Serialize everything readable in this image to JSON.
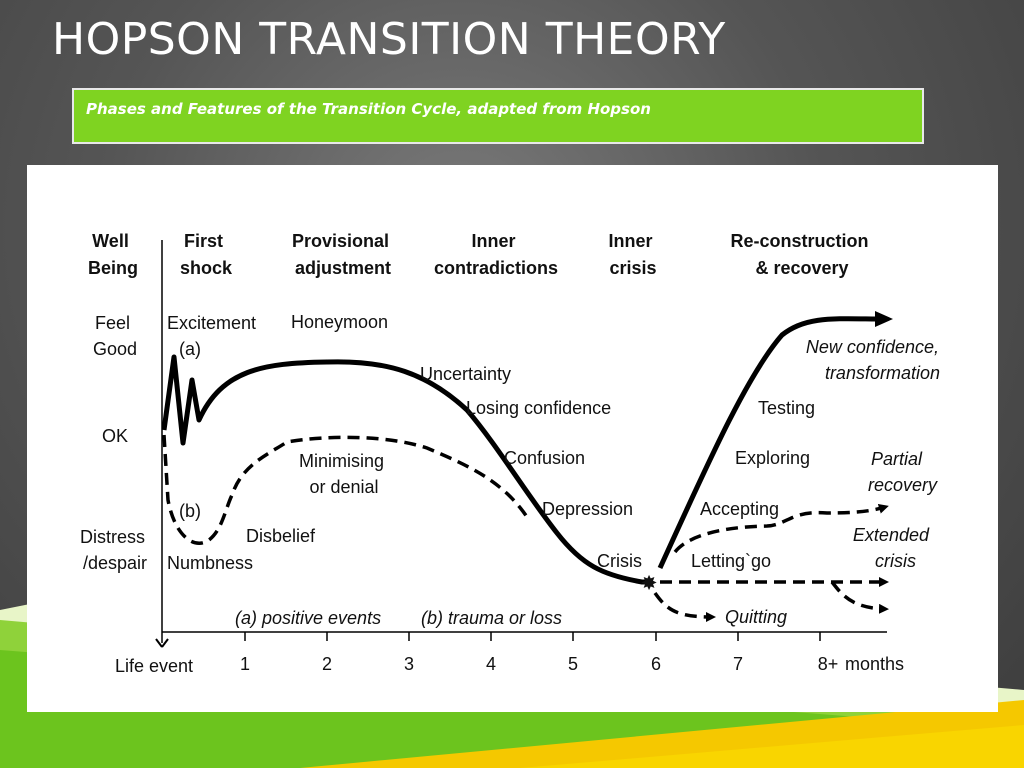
{
  "slide": {
    "title": "HOPSON TRANSITION THEORY",
    "caption": "Phases and Features of the Transition Cycle, adapted from Hopson",
    "accent_color": "#7fd321",
    "background_color": "#4a4a4a"
  },
  "diagram": {
    "headers": {
      "well_being": [
        "Well",
        "Being"
      ],
      "first_shock": [
        "First",
        "shock"
      ],
      "provisional": [
        "Provisional",
        "adjustment"
      ],
      "inner_contradictions": [
        "Inner",
        "contradictions"
      ],
      "inner_crisis": [
        "Inner",
        "crisis"
      ],
      "reconstruction": [
        "Re-construction",
        "& recovery"
      ]
    },
    "levels": {
      "feel_good": [
        "Feel",
        "Good"
      ],
      "ok": "OK",
      "distress": [
        "Distress",
        "/despair"
      ]
    },
    "labels": {
      "excitement": "Excitement",
      "a_marker": "(a)",
      "b_marker": "(b)",
      "honeymoon": "Honeymoon",
      "uncertainty": "Uncertainty",
      "losing_confidence": "Losing confidence",
      "confusion": "Confusion",
      "depression": "Depression",
      "crisis": "Crisis",
      "minimising": [
        "Minimising",
        "or denial"
      ],
      "disbelief": "Disbelief",
      "numbness": "Numbness",
      "testing": "Testing",
      "exploring": "Exploring",
      "accepting": "Accepting",
      "letting_go": "Letting`go",
      "quitting": "Quitting",
      "new_confidence": [
        "New confidence,",
        "transformation"
      ],
      "partial_recovery": [
        "Partial",
        "recovery"
      ],
      "extended_crisis": [
        "Extended",
        "crisis"
      ],
      "positive_events": "(a) positive events",
      "trauma_or_loss": "(b) trauma or loss"
    },
    "x_axis": {
      "origin_label": "Life event",
      "ticks": [
        "1",
        "2",
        "3",
        "4",
        "5",
        "6",
        "7",
        "8+"
      ],
      "unit": "months"
    }
  }
}
